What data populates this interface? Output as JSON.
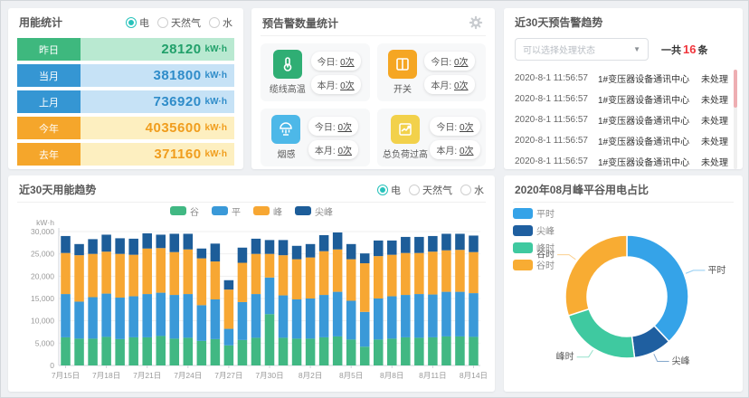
{
  "colors": {
    "accent_teal": "#27c2bb",
    "green": "#3eb87e",
    "blue": "#3596d3",
    "orange": "#f5a62b",
    "alarm_red": "#f0353c",
    "bar_valley": "#41b883",
    "bar_flat": "#3a99d8",
    "bar_peak": "#f7a733",
    "bar_sharp": "#1d5d99",
    "donut_flat": "#35a3e8",
    "donut_sharp": "#1f5fa0",
    "donut_peak": "#3fc9a0",
    "donut_valley": "#f8ac33"
  },
  "energy_stats": {
    "title": "用能统计",
    "radios": [
      {
        "label": "电",
        "selected": true
      },
      {
        "label": "天然气",
        "selected": false
      },
      {
        "label": "水",
        "selected": false
      }
    ],
    "rows": [
      {
        "label": "昨日",
        "value": "28120",
        "unit": "kW·h"
      },
      {
        "label": "当月",
        "value": "381800",
        "unit": "kW·h"
      },
      {
        "label": "上月",
        "value": "736920",
        "unit": "kW·h"
      },
      {
        "label": "今年",
        "value": "4035600",
        "unit": "kW·h"
      },
      {
        "label": "去年",
        "value": "371160",
        "unit": "kW·h"
      }
    ]
  },
  "alarm_stats": {
    "title": "预告警数量统计",
    "cards": [
      {
        "label": "缆线高温",
        "today_label": "今日:",
        "today_value": "0次",
        "month_label": "本月:",
        "month_value": "0次"
      },
      {
        "label": "开关",
        "today_label": "今日:",
        "today_value": "0次",
        "month_label": "本月:",
        "month_value": "0次"
      },
      {
        "label": "烟感",
        "today_label": "今日:",
        "today_value": "0次",
        "month_label": "本月:",
        "month_value": "0次"
      },
      {
        "label": "总负荷过高",
        "today_label": "今日:",
        "today_value": "0次",
        "month_label": "本月:",
        "month_value": "0次"
      }
    ]
  },
  "alarm_trend": {
    "title": "近30天预告警趋势",
    "filter_placeholder": "可以选择处理状态",
    "total_prefix": "一共",
    "total_count": "16",
    "total_suffix": "条",
    "rows": [
      {
        "time": "2020-8-1 11:56:57",
        "device": "1#变压器设备通讯中心",
        "status": "未处理"
      },
      {
        "time": "2020-8-1 11:56:57",
        "device": "1#变压器设备通讯中心",
        "status": "未处理"
      },
      {
        "time": "2020-8-1 11:56:57",
        "device": "1#变压器设备通讯中心",
        "status": "未处理"
      },
      {
        "time": "2020-8-1 11:56:57",
        "device": "1#变压器设备通讯中心",
        "status": "未处理"
      },
      {
        "time": "2020-8-1 11:56:57",
        "device": "1#变压器设备通讯中心",
        "status": "未处理"
      }
    ]
  },
  "usage_trend": {
    "title": "近30天用能趋势",
    "radios": [
      {
        "label": "电",
        "selected": true
      },
      {
        "label": "天然气",
        "selected": false
      },
      {
        "label": "水",
        "selected": false
      }
    ]
  },
  "donut_panel": {
    "title": "2020年08月峰平谷用电占比"
  },
  "chart_data": [
    {
      "type": "bar",
      "stacked": true,
      "title": "近30天用能趋势",
      "ylabel": "kW·h",
      "ylim": [
        0,
        30000
      ],
      "ytick_step": 5000,
      "grid": true,
      "legend_position": "top-center",
      "xtick_every": 3,
      "categories": [
        "7月15日",
        "7月16日",
        "7月17日",
        "7月18日",
        "7月19日",
        "7月20日",
        "7月21日",
        "7月22日",
        "7月23日",
        "7月24日",
        "7月25日",
        "7月26日",
        "7月27日",
        "7月28日",
        "7月29日",
        "7月30日",
        "7月31日",
        "8月1日",
        "8月2日",
        "8月3日",
        "8月4日",
        "8月5日",
        "8月6日",
        "8月7日",
        "8月8日",
        "8月9日",
        "8月10日",
        "8月11日",
        "8月12日",
        "8月13日",
        "8月14日"
      ],
      "series": [
        {
          "name": "谷",
          "color": "#41b883",
          "values": [
            6300,
            6000,
            6000,
            6400,
            5900,
            6300,
            6300,
            6600,
            6000,
            6200,
            5500,
            5900,
            4500,
            5700,
            6200,
            11500,
            6200,
            6000,
            6000,
            6300,
            6500,
            5800,
            4200,
            5800,
            6000,
            6300,
            6200,
            6300,
            6500,
            6500,
            6400
          ]
        },
        {
          "name": "平",
          "color": "#3a99d8",
          "values": [
            9700,
            8300,
            9300,
            9700,
            9300,
            9200,
            9700,
            9700,
            9800,
            9800,
            8000,
            8900,
            3700,
            8500,
            9800,
            8200,
            9500,
            8800,
            9000,
            9500,
            10000,
            8700,
            7800,
            9200,
            9500,
            9500,
            9800,
            9600,
            10000,
            10000,
            9800
          ]
        },
        {
          "name": "峰",
          "color": "#f7a733",
          "values": [
            9200,
            10400,
            9700,
            9400,
            9800,
            9300,
            10200,
            10000,
            9600,
            10000,
            10500,
            8500,
            8800,
            8800,
            9000,
            5300,
            9000,
            9000,
            9200,
            9800,
            9500,
            9300,
            10900,
            9500,
            9300,
            9400,
            9200,
            9600,
            9300,
            9400,
            9200
          ]
        },
        {
          "name": "尖峰",
          "color": "#1d5d99",
          "values": [
            3800,
            2500,
            3300,
            3800,
            3500,
            3600,
            3400,
            3000,
            4100,
            3500,
            2200,
            4000,
            2100,
            3400,
            3400,
            3100,
            3400,
            3000,
            3000,
            3600,
            3800,
            3400,
            2200,
            3500,
            3200,
            3600,
            3600,
            3500,
            3700,
            3600,
            3700
          ]
        }
      ]
    },
    {
      "type": "pie",
      "donut": true,
      "title": "2020年08月峰平谷用电占比",
      "legend_position": "top-left",
      "slices": [
        {
          "name": "平时",
          "value": 38,
          "color": "#35a3e8"
        },
        {
          "name": "尖峰",
          "value": 10,
          "color": "#1f5fa0"
        },
        {
          "name": "峰时",
          "value": 22,
          "color": "#3fc9a0"
        },
        {
          "name": "谷时",
          "value": 30,
          "color": "#f8ac33"
        }
      ]
    }
  ]
}
